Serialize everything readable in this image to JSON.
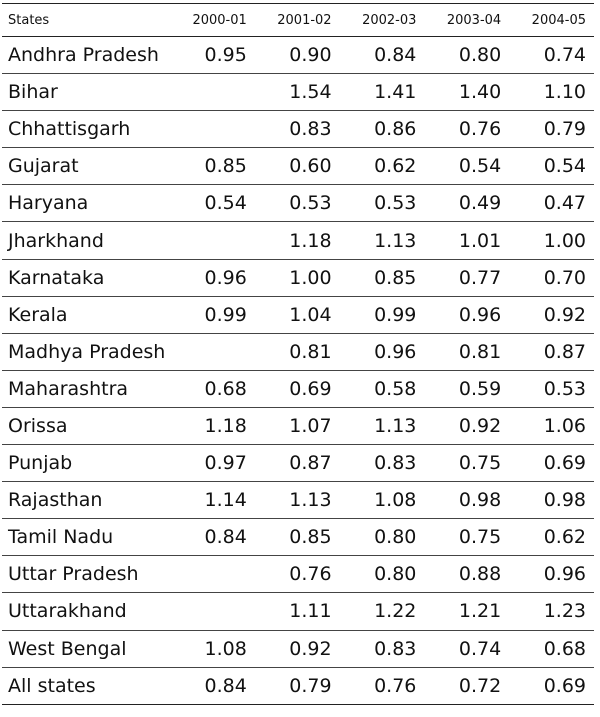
{
  "table": {
    "headers": [
      "States",
      "2000-01",
      "2001-02",
      "2002-03",
      "2003-04",
      "2004-05"
    ],
    "rows": [
      [
        "Andhra Pradesh",
        "0.95",
        "0.90",
        "0.84",
        "0.80",
        "0.74"
      ],
      [
        "Bihar",
        "",
        "1.54",
        "1.41",
        "1.40",
        "1.10"
      ],
      [
        "Chhattisgarh",
        "",
        "0.83",
        "0.86",
        "0.76",
        "0.79"
      ],
      [
        "Gujarat",
        "0.85",
        "0.60",
        "0.62",
        "0.54",
        "0.54"
      ],
      [
        "Haryana",
        "0.54",
        "0.53",
        "0.53",
        "0.49",
        "0.47"
      ],
      [
        "Jharkhand",
        "",
        "1.18",
        "1.13",
        "1.01",
        "1.00"
      ],
      [
        "Karnataka",
        "0.96",
        "1.00",
        "0.85",
        "0.77",
        "0.70"
      ],
      [
        "Kerala",
        "0.99",
        "1.04",
        "0.99",
        "0.96",
        "0.92"
      ],
      [
        "Madhya Pradesh",
        "",
        "0.81",
        "0.96",
        "0.81",
        "0.87"
      ],
      [
        "Maharashtra",
        "0.68",
        "0.69",
        "0.58",
        "0.59",
        "0.53"
      ],
      [
        "Orissa",
        "1.18",
        "1.07",
        "1.13",
        "0.92",
        "1.06"
      ],
      [
        "Punjab",
        "0.97",
        "0.87",
        "0.83",
        "0.75",
        "0.69"
      ],
      [
        "Rajasthan",
        "1.14",
        "1.13",
        "1.08",
        "0.98",
        "0.98"
      ],
      [
        "Tamil Nadu",
        "0.84",
        "0.85",
        "0.80",
        "0.75",
        "0.62"
      ],
      [
        "Uttar Pradesh",
        "",
        "0.76",
        "0.80",
        "0.88",
        "0.96"
      ],
      [
        "Uttarakhand",
        "",
        "1.11",
        "1.22",
        "1.21",
        "1.23"
      ],
      [
        "West Bengal",
        "1.08",
        "0.92",
        "0.83",
        "0.74",
        "0.68"
      ],
      [
        "All states",
        "0.84",
        "0.79",
        "0.76",
        "0.72",
        "0.69"
      ]
    ]
  }
}
